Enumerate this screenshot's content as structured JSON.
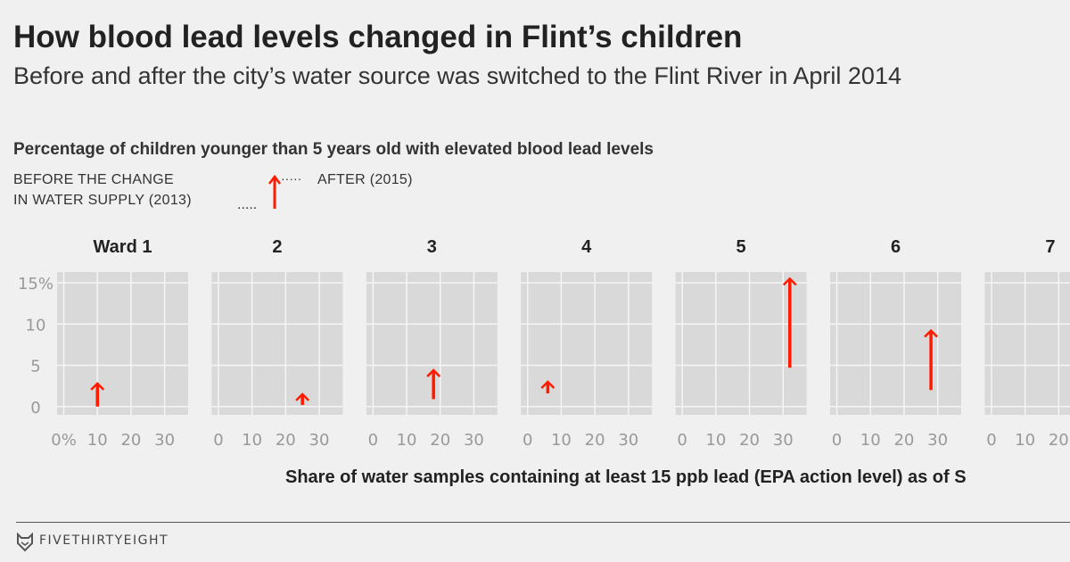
{
  "header": {
    "title": "How blood lead levels changed in Flint’s children",
    "subtitle": "Before and after the city’s water source was switched to the Flint River in April 2014"
  },
  "legend": {
    "before_line1": "BEFORE THE CHANGE",
    "before_line2": "IN WATER SUPPLY (2013)",
    "after": "AFTER (2015)"
  },
  "footer": {
    "brand": "FIVETHIRTYEIGHT"
  },
  "colors": {
    "arrow": "#ff1a00",
    "panel": "#d9d9d9",
    "grid": "#f5f5f5",
    "tick": "#999999"
  },
  "chart_data": {
    "type": "small-multiples arrow",
    "title": "Percentage of children younger than 5 years old with elevated blood lead levels",
    "xlabel": "Share of water samples containing at least 15 ppb lead (EPA action level) as of S",
    "xlim": [
      -2,
      37
    ],
    "ylim": [
      -1,
      16.3
    ],
    "xticks": [
      0,
      10,
      20,
      30
    ],
    "yticks": [
      0,
      5,
      10,
      15
    ],
    "xtick_labels_first": [
      "0%",
      "10",
      "20",
      "30"
    ],
    "ytick_labels": [
      "0",
      "5",
      "10",
      "15%"
    ],
    "grid": true,
    "panels": [
      {
        "label": "Ward 1",
        "x": 10,
        "before": 0,
        "after": 2.8
      },
      {
        "label": "2",
        "x": 25,
        "before": 0.2,
        "after": 1.5
      },
      {
        "label": "3",
        "x": 18,
        "before": 0.9,
        "after": 4.4
      },
      {
        "label": "4",
        "x": 6,
        "before": 1.6,
        "after": 3.0
      },
      {
        "label": "5",
        "x": 32,
        "before": 4.7,
        "after": 15.5
      },
      {
        "label": "6",
        "x": 28,
        "before": 2.0,
        "after": 9.2
      },
      {
        "label": "7",
        "x": null,
        "before": null,
        "after": null
      }
    ]
  }
}
